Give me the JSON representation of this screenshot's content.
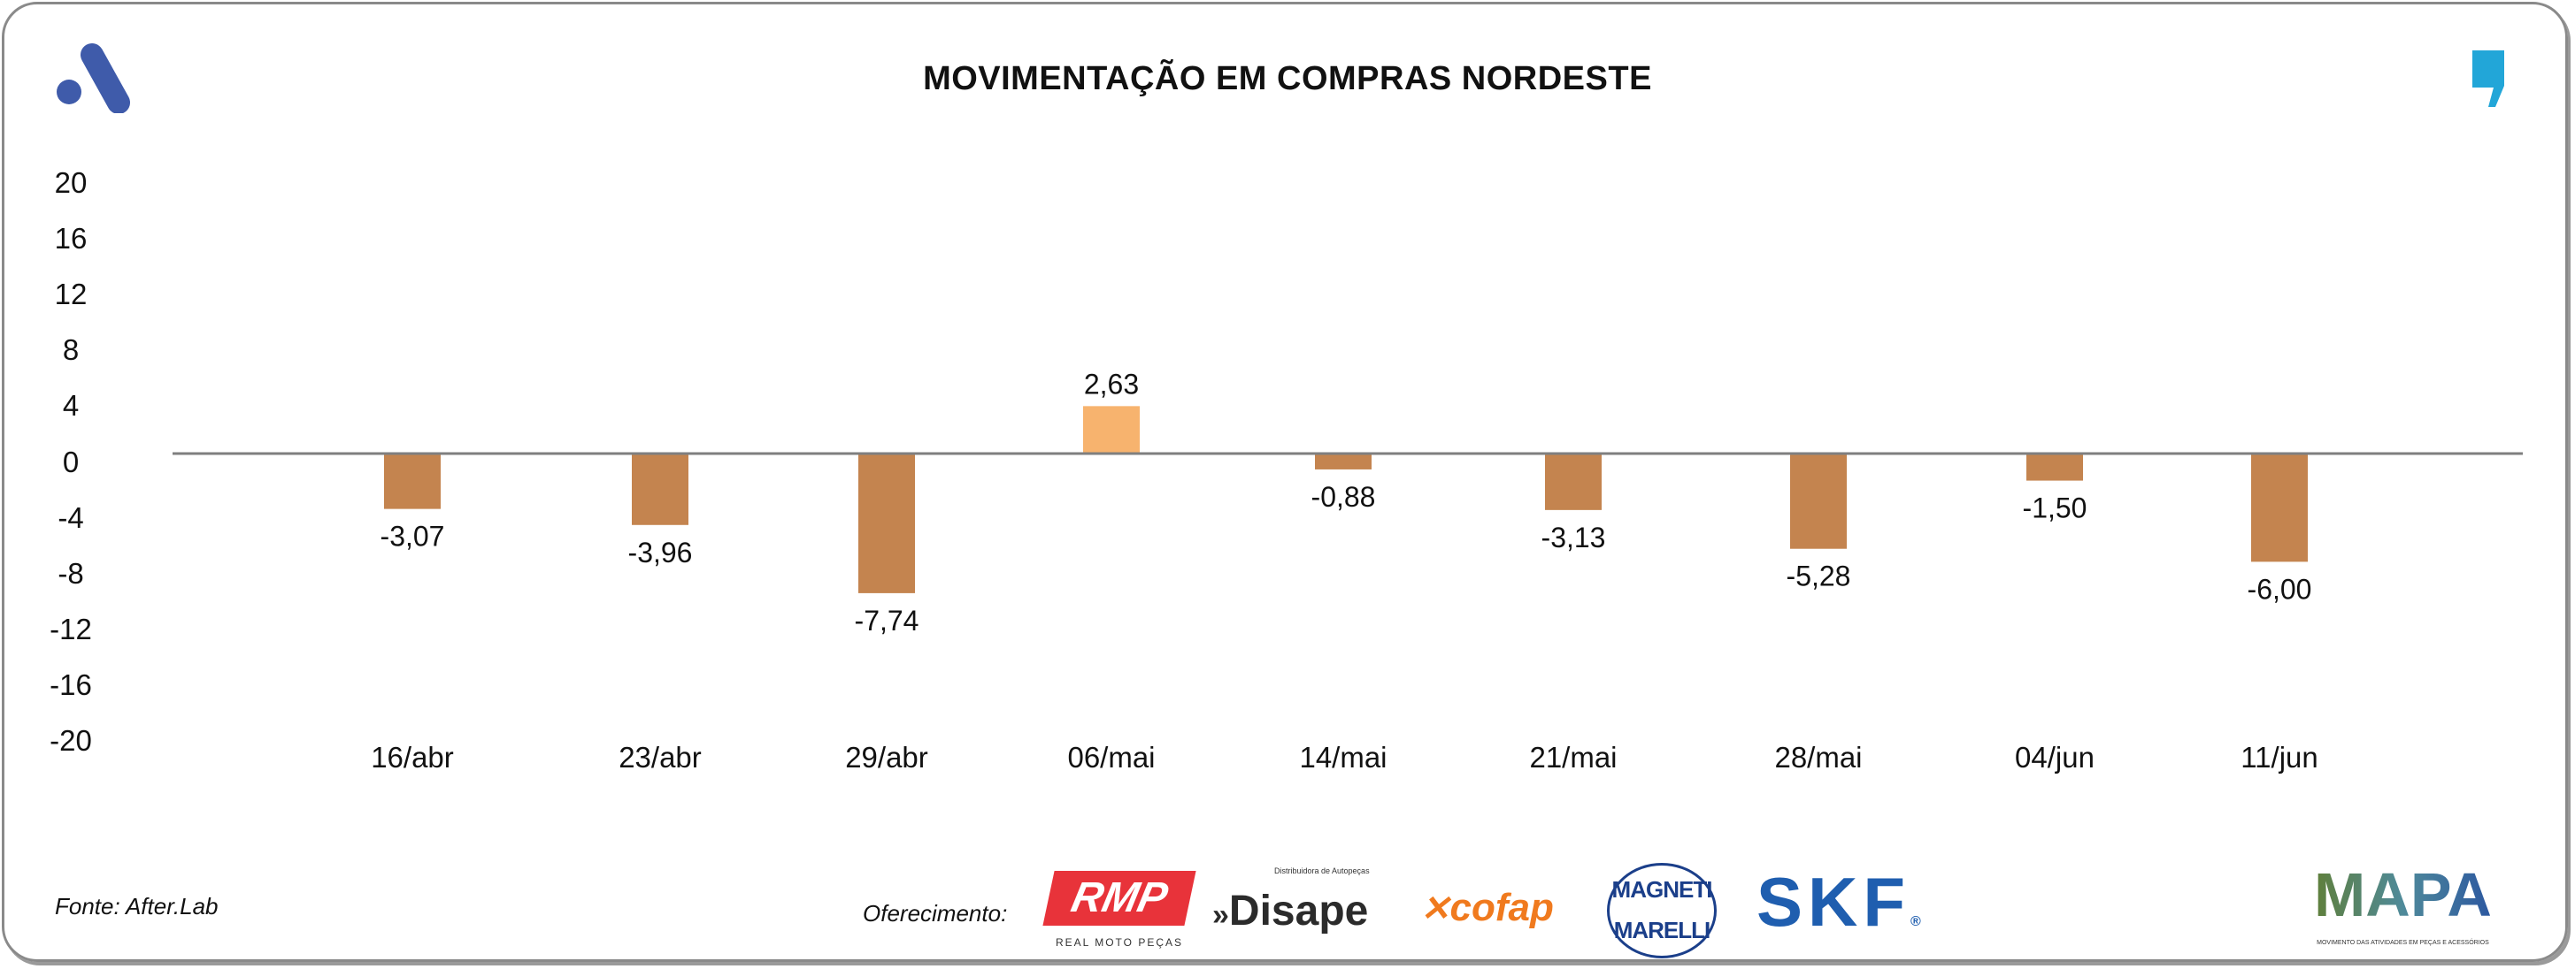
{
  "title": "MOVIMENTAÇÃO EM COMPRAS NORDESTE",
  "source": "Fonte: After.Lab",
  "sponsor_label": "Oferecimento:",
  "sponsors": [
    "RMP",
    "REAL MOTO PEÇAS",
    "Disape",
    "Distribuidora de Autopeças",
    "cofap",
    "MAGNETI",
    "MARELLI",
    "SKF",
    "MAPA",
    "MOVIMENTO DAS ATIVIDADES EM PEÇAS E ACESSÓRIOS"
  ],
  "colors": {
    "negative": "#C4844F",
    "positive": "#F7B36E",
    "axis": "#7f7f7f",
    "brand_left": "#3F5BAA",
    "brand_right": "#22A6D8"
  },
  "icons": {
    "left_logo": "a-logo-icon",
    "right_logo": "comma-logo-icon"
  },
  "chart_data": {
    "type": "bar",
    "title": "MOVIMENTAÇÃO EM COMPRAS NORDESTE",
    "categories": [
      "16/abr",
      "23/abr",
      "29/abr",
      "06/mai",
      "14/mai",
      "21/mai",
      "28/mai",
      "04/jun",
      "11/jun"
    ],
    "values": [
      -3.07,
      -3.96,
      -7.74,
      2.63,
      -0.88,
      -3.13,
      -5.28,
      -1.5,
      -6.0
    ],
    "labels": [
      "-3,07",
      "-3,96",
      "-7,74",
      "2,63",
      "-0,88",
      "-3,13",
      "-5,28",
      "-1,50",
      "-6,00"
    ],
    "yticks": [
      "20",
      "16",
      "12",
      "8",
      "4",
      "0",
      "-4",
      "-8",
      "-12",
      "-16",
      "-20"
    ],
    "ylim": [
      -20,
      20
    ],
    "grid": false,
    "legend": "none"
  }
}
